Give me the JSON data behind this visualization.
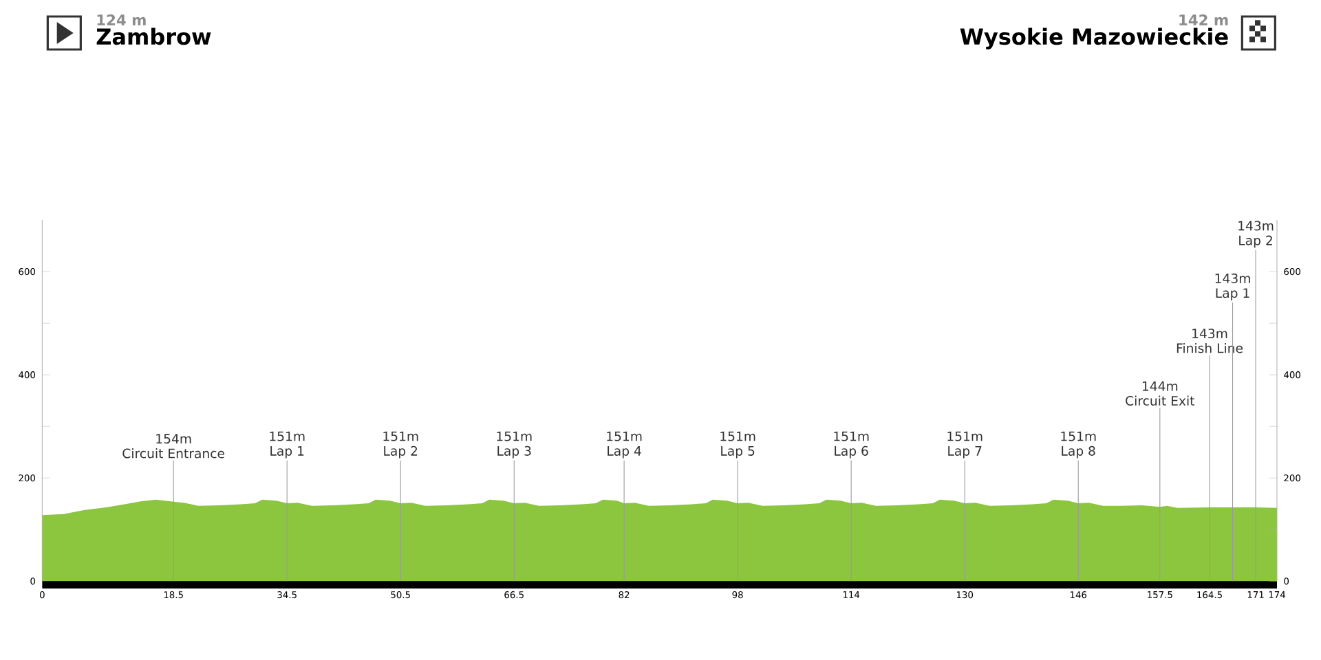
{
  "chart_data": {
    "type": "area",
    "color": "#8cc63f",
    "x": [
      0,
      3,
      6,
      9,
      12,
      14,
      16,
      18.5,
      20,
      22,
      25,
      28,
      30,
      31,
      33,
      34.5,
      36,
      38,
      41,
      44,
      46,
      47,
      49,
      50.5,
      52,
      54,
      57,
      60,
      62,
      63,
      65,
      66.5,
      68,
      70,
      73,
      76,
      78,
      79,
      81,
      82,
      83.5,
      85.5,
      88.5,
      91.5,
      93.5,
      94.5,
      96.5,
      98,
      99.5,
      101.5,
      104.5,
      107.5,
      109.5,
      110.5,
      112.5,
      114,
      115.5,
      117.5,
      120.5,
      123.5,
      125.5,
      126.5,
      128.5,
      130,
      131.5,
      133.5,
      136.5,
      139.5,
      141.5,
      142.5,
      144.5,
      146,
      147.5,
      149.5,
      152,
      155,
      157.5,
      158.5,
      160,
      164.5,
      167.75,
      171,
      174
    ],
    "values": [
      128,
      130,
      138,
      143,
      150,
      155,
      158,
      154,
      152,
      146,
      147,
      149,
      151,
      158,
      156,
      151,
      152,
      146,
      147,
      149,
      151,
      158,
      156,
      151,
      152,
      146,
      147,
      149,
      151,
      158,
      156,
      151,
      152,
      146,
      147,
      149,
      151,
      158,
      156,
      151,
      152,
      146,
      147,
      149,
      151,
      158,
      156,
      151,
      152,
      146,
      147,
      149,
      151,
      158,
      156,
      151,
      152,
      146,
      147,
      149,
      151,
      158,
      156,
      151,
      152,
      146,
      147,
      149,
      151,
      158,
      156,
      151,
      152,
      146,
      146,
      147,
      144,
      146,
      142,
      143,
      143,
      143,
      142
    ],
    "xlim": [
      0,
      174
    ],
    "xticks": [
      0,
      18.5,
      34.5,
      50.5,
      66.5,
      82,
      98,
      114,
      130,
      146,
      157.5,
      164.5,
      171,
      174
    ],
    "ylim": [
      0,
      700
    ],
    "yticks": [
      0,
      {
        "value": 100,
        "label": null
      },
      200,
      {
        "value": 300,
        "label": null
      },
      400,
      {
        "value": 500,
        "label": null
      },
      600
    ],
    "y2lim": [
      0,
      700
    ],
    "y2ticks": [
      0,
      {
        "value": 100,
        "label": null
      },
      200,
      {
        "value": 300,
        "label": null
      },
      400,
      {
        "value": 500,
        "label": null
      },
      600
    ],
    "ref_lines": [
      {
        "axis": "x",
        "value": 18.5,
        "label": "Circuit Entrance",
        "color": "#999999"
      },
      {
        "axis": "x",
        "value": 34.5,
        "label": "Lap 1",
        "color": "#999999"
      },
      {
        "axis": "x",
        "value": 50.5,
        "label": "Lap 2",
        "color": "#999999"
      },
      {
        "axis": "x",
        "value": 66.5,
        "label": "Lap 3",
        "color": "#999999"
      },
      {
        "axis": "x",
        "value": 82,
        "label": "Lap 4",
        "color": "#999999"
      },
      {
        "axis": "x",
        "value": 98,
        "label": "Lap 5",
        "color": "#999999"
      },
      {
        "axis": "x",
        "value": 114,
        "label": "Lap 6",
        "color": "#999999"
      },
      {
        "axis": "x",
        "value": 130,
        "label": "Lap 7",
        "color": "#999999"
      },
      {
        "axis": "x",
        "value": 146,
        "label": "Lap 8",
        "color": "#999999"
      },
      {
        "axis": "x",
        "value": 157.5,
        "label": "Circuit Exit",
        "color": "#999999"
      },
      {
        "axis": "x",
        "value": 164.5,
        "label": "Finish Line",
        "color": "#999999"
      },
      {
        "axis": "x",
        "value": 167.75,
        "label": "Lap 1",
        "color": "#999999"
      },
      {
        "axis": "x",
        "value": 171,
        "label": "Lap 2",
        "color": "#999999"
      }
    ],
    "annotations": [
      "154m",
      "151m",
      "151m",
      "151m",
      "151m",
      "151m",
      "151m",
      "151m",
      "151m",
      "144m",
      "143m",
      "143m",
      "143m",
      "124 m",
      "Zambrow",
      "142 m",
      "Wysokie Mazowieckie"
    ]
  }
}
